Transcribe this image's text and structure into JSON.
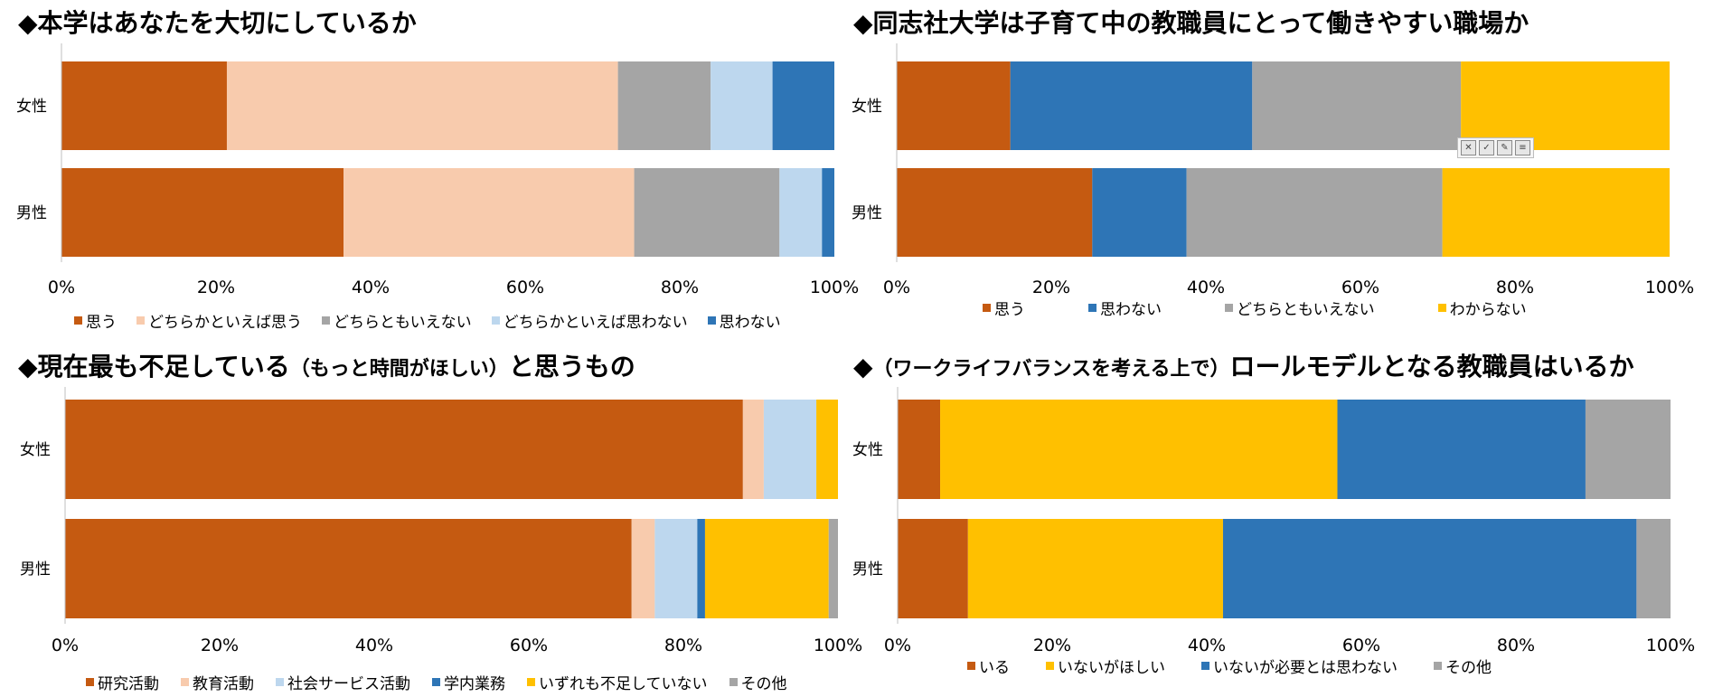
{
  "charts": [
    {
      "title": "◆本学はあなたを大切にしているか",
      "chart_data": {
        "type": "bar",
        "orientation": "horizontal",
        "stacked": true,
        "categories": [
          "女性",
          "男性"
        ],
        "series": [
          {
            "name": "思う",
            "values": [
              21.4,
              36.5
            ],
            "color": "#c55a11"
          },
          {
            "name": "どちらかといえば思う",
            "values": [
              50.6,
              37.6
            ],
            "color": "#f8cbad"
          },
          {
            "name": "どちらともいえない",
            "values": [
              12.0,
              18.8
            ],
            "color": "#a5a5a5"
          },
          {
            "name": "どちらかといえば思わない",
            "values": [
              8.0,
              5.5
            ],
            "color": "#bdd7ee"
          },
          {
            "name": "思わない",
            "values": [
              8.0,
              1.6
            ],
            "color": "#2e75b6"
          }
        ],
        "xlim": [
          0,
          100
        ],
        "xticks": [
          "0%",
          "20%",
          "40%",
          "60%",
          "80%",
          "100%"
        ],
        "legend": "bottom"
      }
    },
    {
      "title": "◆同志社大学は子育て中の教職員にとって働きやすい職場か",
      "chart_data": {
        "type": "bar",
        "orientation": "horizontal",
        "stacked": true,
        "categories": [
          "女性",
          "男性"
        ],
        "series": [
          {
            "name": "思う",
            "values": [
              14.7,
              25.3
            ],
            "color": "#c55a11"
          },
          {
            "name": "思わない",
            "values": [
              31.3,
              12.2
            ],
            "color": "#2e75b6"
          },
          {
            "name": "どちらともいえない",
            "values": [
              27.0,
              33.1
            ],
            "color": "#a5a5a5"
          },
          {
            "name": "わからない",
            "values": [
              27.0,
              29.4
            ],
            "color": "#ffc000"
          }
        ],
        "xlim": [
          0,
          100
        ],
        "xticks": [
          "0%",
          "20%",
          "40%",
          "60%",
          "80%",
          "100%"
        ],
        "legend": "bottom"
      }
    },
    {
      "title_main": "◆現在最も不足している",
      "title_small": "（もっと時間がほしい）",
      "title_end": "と思うもの",
      "chart_data": {
        "type": "bar",
        "orientation": "horizontal",
        "stacked": true,
        "categories": [
          "女性",
          "男性"
        ],
        "series": [
          {
            "name": "研究活動",
            "values": [
              87.7,
              73.3
            ],
            "color": "#c55a11"
          },
          {
            "name": "教育活動",
            "values": [
              2.7,
              3.0
            ],
            "color": "#f8cbad"
          },
          {
            "name": "社会サービス活動",
            "values": [
              6.8,
              5.5
            ],
            "color": "#bdd7ee"
          },
          {
            "name": "学内業務",
            "values": [
              0.0,
              1.0
            ],
            "color": "#2e75b6"
          },
          {
            "name": "いずれも不足していない",
            "values": [
              2.8,
              16.0
            ],
            "color": "#ffc000"
          },
          {
            "name": "その他",
            "values": [
              0.0,
              1.2
            ],
            "color": "#a5a5a5"
          }
        ],
        "xlim": [
          0,
          100
        ],
        "xticks": [
          "0%",
          "20%",
          "40%",
          "60%",
          "80%",
          "100%"
        ],
        "legend": "bottom"
      }
    },
    {
      "title_main": "◆",
      "title_small": "（ワークライフバランスを考える上で）",
      "title_end": "ロールモデルとなる教職員はいるか",
      "chart_data": {
        "type": "bar",
        "orientation": "horizontal",
        "stacked": true,
        "categories": [
          "女性",
          "男性"
        ],
        "series": [
          {
            "name": "いる",
            "values": [
              5.5,
              9.1
            ],
            "color": "#c55a11"
          },
          {
            "name": "いないがほしい",
            "values": [
              51.4,
              33.0
            ],
            "color": "#ffc000"
          },
          {
            "name": "いないが必要とは思わない",
            "values": [
              32.1,
              53.5
            ],
            "color": "#2e75b6"
          },
          {
            "name": "その他",
            "values": [
              11.0,
              4.4
            ],
            "color": "#a5a5a5"
          }
        ],
        "xlim": [
          0,
          100
        ],
        "xticks": [
          "0%",
          "20%",
          "40%",
          "60%",
          "80%",
          "100%"
        ],
        "legend": "bottom"
      }
    }
  ]
}
